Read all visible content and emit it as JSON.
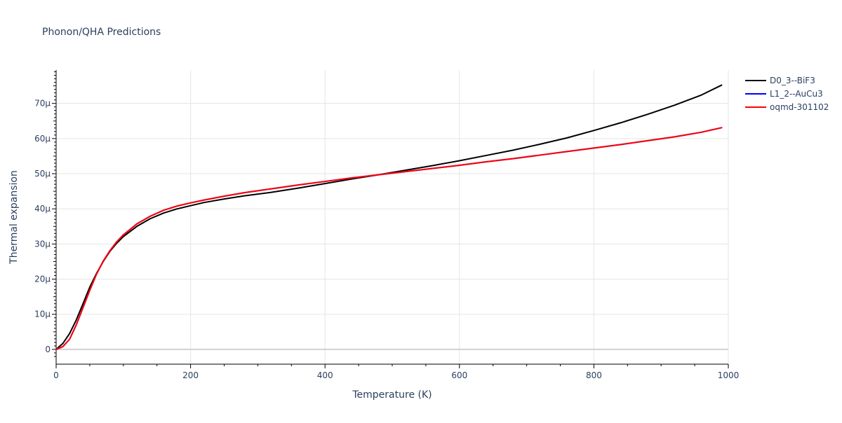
{
  "chart_data": {
    "type": "line",
    "title": "Phonon/QHA Predictions",
    "xlabel": "Temperature (K)",
    "ylabel": "Thermal expansion",
    "xlim": [
      0,
      1000
    ],
    "ylim": [
      -4.2e-06,
      7.95e-05
    ],
    "x_ticks": [
      0,
      200,
      400,
      600,
      800,
      1000
    ],
    "x_tick_labels": [
      "0",
      "200",
      "400",
      "600",
      "800",
      "1000"
    ],
    "y_ticks": [
      0,
      1e-05,
      2e-05,
      3e-05,
      4e-05,
      5e-05,
      6e-05,
      7e-05
    ],
    "y_tick_labels": [
      "0",
      "10μ",
      "20μ",
      "30μ",
      "40μ",
      "50μ",
      "60μ",
      "70μ"
    ],
    "grid": true,
    "legend_position": "top-right",
    "series": [
      {
        "name": "D0_3--BiF3",
        "color": "#000000",
        "x": [
          0,
          10,
          20,
          30,
          40,
          50,
          60,
          70,
          80,
          90,
          100,
          120,
          140,
          160,
          180,
          200,
          220,
          250,
          280,
          320,
          360,
          400,
          440,
          480,
          520,
          560,
          600,
          640,
          680,
          720,
          760,
          800,
          840,
          880,
          920,
          960,
          990
        ],
        "y": [
          0,
          1.7e-06,
          4.5e-06,
          8.4e-06,
          1.3e-05,
          1.77e-05,
          2.16e-05,
          2.5e-05,
          2.79e-05,
          3.02e-05,
          3.21e-05,
          3.5e-05,
          3.72e-05,
          3.88e-05,
          4e-05,
          4.09e-05,
          4.18e-05,
          4.28e-05,
          4.37e-05,
          4.47e-05,
          4.59e-05,
          4.72e-05,
          4.85e-05,
          4.97e-05,
          5.1e-05,
          5.23e-05,
          5.37e-05,
          5.52e-05,
          5.67e-05,
          5.84e-05,
          6.02e-05,
          6.23e-05,
          6.45e-05,
          6.69e-05,
          6.95e-05,
          7.24e-05,
          7.52e-05
        ]
      },
      {
        "name": "L1_2--AuCu3",
        "color": "#0000ff",
        "x": [
          0,
          10,
          20,
          30,
          40,
          50,
          60,
          70,
          80,
          90,
          100,
          120,
          140,
          160,
          180,
          200,
          220,
          250,
          280,
          320,
          360,
          400,
          440,
          480,
          520,
          560,
          600,
          640,
          680,
          720,
          760,
          800,
          840,
          880,
          920,
          960,
          990
        ],
        "y": [
          0,
          8e-07,
          2.9e-06,
          7e-06,
          1.19e-05,
          1.68e-05,
          2.14e-05,
          2.51e-05,
          2.81e-05,
          3.06e-05,
          3.26e-05,
          3.57e-05,
          3.79e-05,
          3.96e-05,
          4.08e-05,
          4.17e-05,
          4.25e-05,
          4.36e-05,
          4.46e-05,
          4.57e-05,
          4.68e-05,
          4.78e-05,
          4.88e-05,
          4.97e-05,
          5.06e-05,
          5.15e-05,
          5.24e-05,
          5.34e-05,
          5.43e-05,
          5.53e-05,
          5.63e-05,
          5.73e-05,
          5.83e-05,
          5.94e-05,
          6.05e-05,
          6.18e-05,
          6.31e-05
        ]
      },
      {
        "name": "oqmd-301102",
        "color": "#ff0000",
        "x": [
          0,
          10,
          20,
          30,
          40,
          50,
          60,
          70,
          80,
          90,
          100,
          120,
          140,
          160,
          180,
          200,
          220,
          250,
          280,
          320,
          360,
          400,
          440,
          480,
          520,
          560,
          600,
          640,
          680,
          720,
          760,
          800,
          840,
          880,
          920,
          960,
          990
        ],
        "y": [
          0,
          8e-07,
          2.9e-06,
          7e-06,
          1.19e-05,
          1.68e-05,
          2.14e-05,
          2.51e-05,
          2.81e-05,
          3.06e-05,
          3.26e-05,
          3.57e-05,
          3.79e-05,
          3.96e-05,
          4.08e-05,
          4.17e-05,
          4.25e-05,
          4.36e-05,
          4.46e-05,
          4.57e-05,
          4.68e-05,
          4.78e-05,
          4.88e-05,
          4.97e-05,
          5.06e-05,
          5.15e-05,
          5.24e-05,
          5.34e-05,
          5.43e-05,
          5.53e-05,
          5.63e-05,
          5.73e-05,
          5.83e-05,
          5.94e-05,
          6.05e-05,
          6.18e-05,
          6.31e-05
        ]
      }
    ]
  }
}
